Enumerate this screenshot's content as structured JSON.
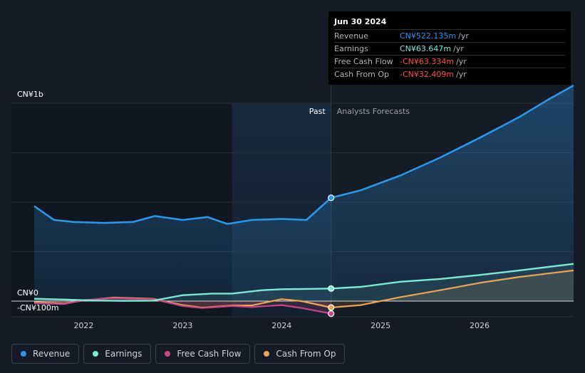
{
  "chart_data": {
    "type": "line",
    "units": "CN¥ millions",
    "y_labels": {
      "top": "CN¥1b",
      "zero": "CN¥0",
      "bottom": "-CN¥100m"
    },
    "ylim": [
      -100,
      1000
    ],
    "xlim": [
      2021.5,
      2026.95
    ],
    "x_ticks": [
      2022,
      2023,
      2024,
      2025,
      2026
    ],
    "x_tick_labels": [
      "2022",
      "2023",
      "2024",
      "2025",
      "2026"
    ],
    "past_label": "Past",
    "forecast_label": "Analysts Forecasts",
    "divider_x": 2024.5,
    "highlight_start": 2023.5,
    "series": [
      {
        "name": "Revenue",
        "color": "#2d96e6",
        "fill": true,
        "x": [
          2021.5,
          2021.7,
          2021.9,
          2022.2,
          2022.5,
          2022.72,
          2023.0,
          2023.25,
          2023.45,
          2023.7,
          2024.0,
          2024.25,
          2024.5,
          2024.8,
          2025.2,
          2025.6,
          2026.0,
          2026.4,
          2026.7,
          2026.95
        ],
        "values": [
          480,
          410,
          400,
          395,
          400,
          430,
          410,
          425,
          390,
          410,
          415,
          410,
          522,
          560,
          635,
          725,
          825,
          930,
          1020,
          1090
        ]
      },
      {
        "name": "Earnings",
        "color": "#7de8d6",
        "fill": true,
        "x": [
          2021.5,
          2021.8,
          2022.1,
          2022.4,
          2022.7,
          2023.0,
          2023.3,
          2023.5,
          2023.8,
          2024.0,
          2024.3,
          2024.5,
          2024.8,
          2025.2,
          2025.6,
          2026.0,
          2026.4,
          2026.95
        ],
        "values": [
          12,
          8,
          3,
          1,
          2,
          30,
          38,
          38,
          55,
          60,
          62,
          63.6,
          72,
          98,
          112,
          132,
          155,
          188
        ]
      },
      {
        "name": "Free Cash Flow",
        "color": "#c8468a",
        "fill": false,
        "x": [
          2021.5,
          2021.8,
          2022.0,
          2022.3,
          2022.5,
          2022.7,
          2023.0,
          2023.2,
          2023.5,
          2023.7,
          2024.0,
          2024.2,
          2024.5
        ],
        "values": [
          -10,
          -15,
          5,
          15,
          12,
          10,
          -25,
          -35,
          -25,
          -30,
          -20,
          -35,
          -63.3
        ]
      },
      {
        "name": "Cash From Op",
        "color": "#e8a658",
        "fill": true,
        "x": [
          2021.5,
          2021.8,
          2022.0,
          2022.3,
          2022.5,
          2022.7,
          2023.0,
          2023.2,
          2023.5,
          2023.7,
          2024.0,
          2024.2,
          2024.5,
          2024.8,
          2025.2,
          2025.6,
          2026.0,
          2026.4,
          2026.95
        ],
        "values": [
          -5,
          -12,
          3,
          18,
          15,
          12,
          -20,
          -33,
          -22,
          -22,
          10,
          0,
          -32.4,
          -20,
          20,
          55,
          92,
          122,
          155
        ]
      }
    ]
  },
  "tooltip": {
    "date": "Jun 30 2024",
    "rows": [
      {
        "label": "Revenue",
        "value": "CN¥522.135m",
        "unit": "/yr",
        "color": "#2d96e6"
      },
      {
        "label": "Earnings",
        "value": "CN¥63.647m",
        "unit": "/yr",
        "color": "#7de8d6"
      },
      {
        "label": "Free Cash Flow",
        "value": "-CN¥63.334m",
        "unit": "/yr",
        "color": "#ff4c4c"
      },
      {
        "label": "Cash From Op",
        "value": "-CN¥32.409m",
        "unit": "/yr",
        "color": "#ff4c4c"
      }
    ]
  },
  "legend": [
    {
      "label": "Revenue",
      "color": "#2d96e6"
    },
    {
      "label": "Earnings",
      "color": "#7de8d6"
    },
    {
      "label": "Free Cash Flow",
      "color": "#c8468a"
    },
    {
      "label": "Cash From Op",
      "color": "#e8a658"
    }
  ]
}
